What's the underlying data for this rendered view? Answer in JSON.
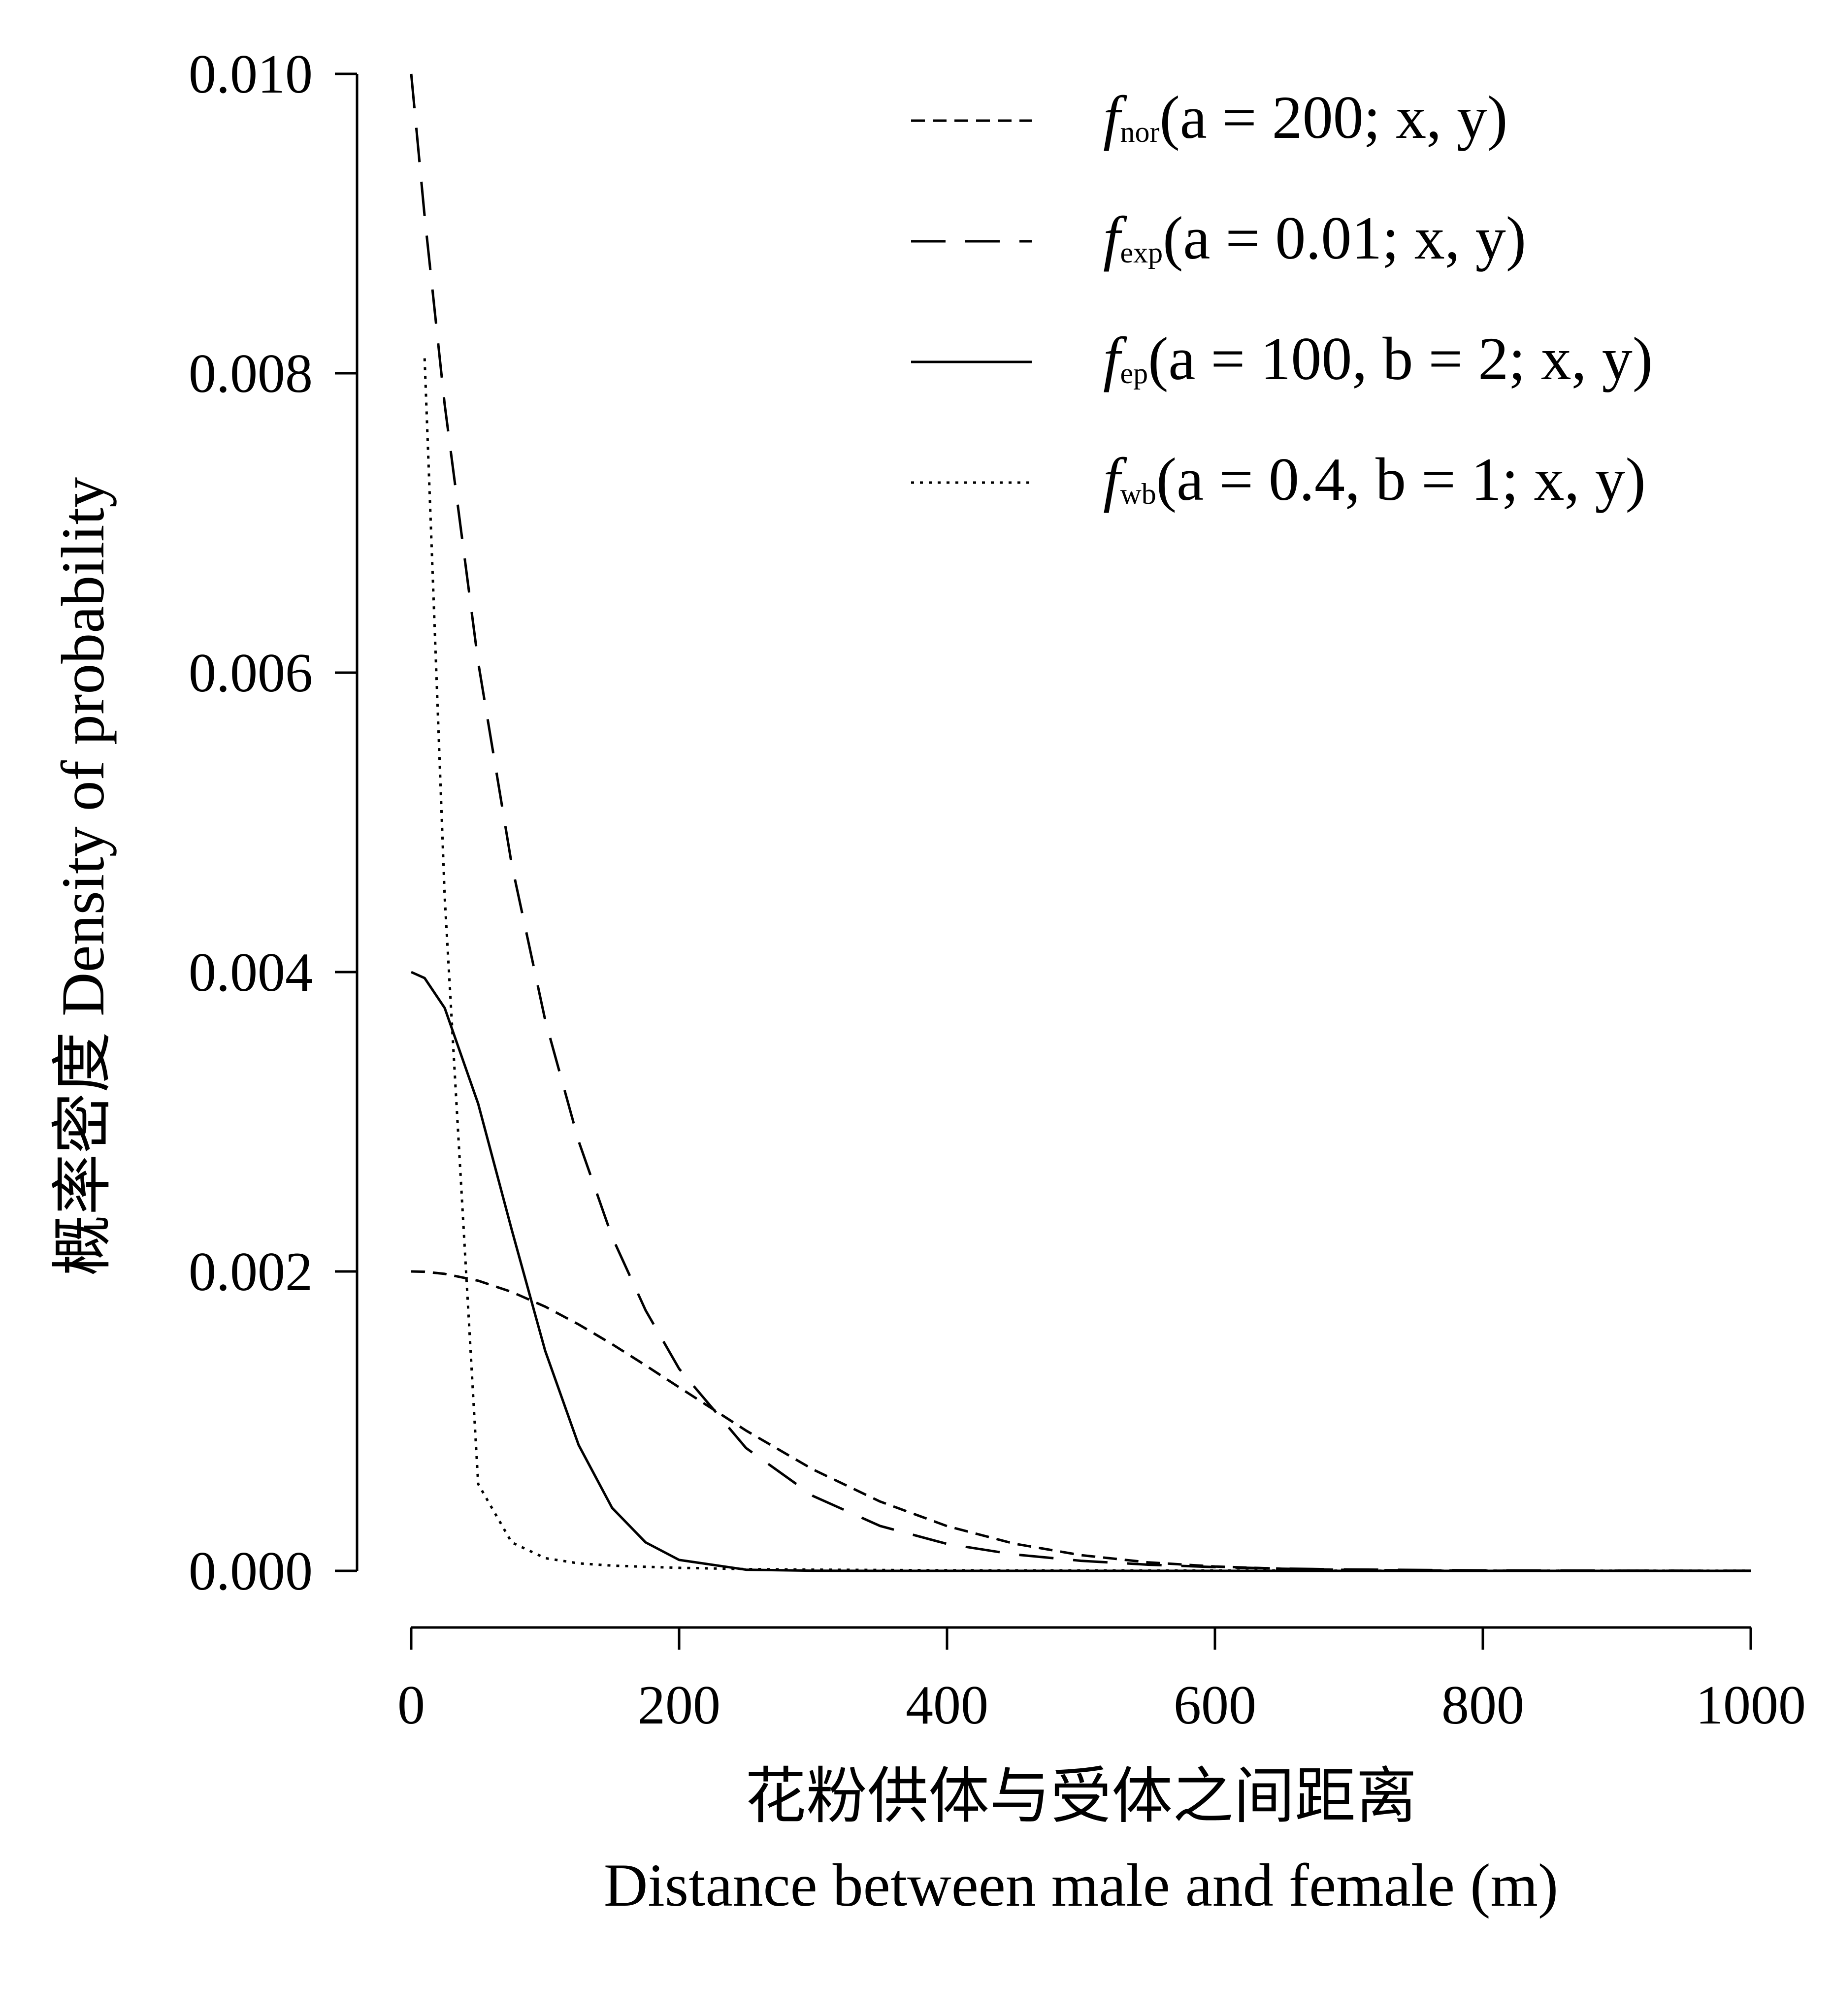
{
  "chart_data": {
    "type": "line",
    "xlabel_cn": "花粉供体与受体之间距离",
    "xlabel": "Distance between male and female (m)",
    "ylabel": "概率密度  Density of probability",
    "xlim": [
      0,
      1000
    ],
    "ylim": [
      0,
      0.01
    ],
    "x_ticks": [
      "0",
      "200",
      "400",
      "600",
      "800",
      "1000"
    ],
    "y_ticks": [
      "0.000",
      "0.002",
      "0.004",
      "0.006",
      "0.008",
      "0.010"
    ],
    "legend_position": "top-right",
    "grid": false,
    "x": [
      0,
      10,
      25,
      50,
      75,
      100,
      125,
      150,
      175,
      200,
      250,
      300,
      350,
      400,
      450,
      500,
      550,
      600,
      650,
      700,
      800,
      900,
      1000
    ],
    "series": [
      {
        "legend_symbol": "f",
        "legend_subscript": "nor",
        "legend_params": "(a = 200; x, y)",
        "style": "short-dash",
        "values": [
          0.002,
          0.001998,
          0.001984,
          0.001938,
          0.001863,
          0.001765,
          0.001646,
          0.001514,
          0.001372,
          0.001226,
          0.000937,
          0.000677,
          0.000463,
          0.000299,
          0.000182,
          0.000105,
          5.7e-05,
          2.9e-05,
          1.4e-05,
          6e-06,
          1e-06,
          2e-07,
          0.0
        ]
      },
      {
        "legend_symbol": "f",
        "legend_subscript": "exp",
        "legend_params": "(a = 0.01; x, y)",
        "style": "long-dash",
        "values": [
          0.01,
          0.00905,
          0.00779,
          0.00607,
          0.00472,
          0.00368,
          0.00287,
          0.00223,
          0.00174,
          0.00135,
          0.00082,
          0.0005,
          0.0003,
          0.00018,
          0.00011,
          6.7e-05,
          4.1e-05,
          2.5e-05,
          1.5e-05,
          9e-06,
          3.4e-06,
          1.2e-06,
          5e-07
        ]
      },
      {
        "legend_symbol": "f",
        "legend_subscript": "ep",
        "legend_params": "(a = 100, b = 2; x, y)",
        "style": "solid",
        "values": [
          0.004,
          0.00396,
          0.00376,
          0.00312,
          0.00228,
          0.00147,
          0.00084,
          0.00042,
          0.00019,
          7.3e-05,
          7.7e-06,
          5e-07,
          0.0,
          0.0,
          0.0,
          0.0,
          0.0,
          0.0,
          0.0,
          0.0,
          0.0,
          0.0,
          0.0
        ]
      },
      {
        "legend_symbol": "f",
        "legend_subscript": "wb",
        "legend_params": "(a = 0.4, b = 1; x, y)",
        "style": "dotted",
        "values": [
          null,
          0.0081,
          0.0045,
          0.00058,
          0.00019,
          8.5e-05,
          5e-05,
          3.5e-05,
          2.7e-05,
          2e-05,
          1.2e-05,
          8e-06,
          6e-06,
          4e-06,
          3e-06,
          3e-06,
          2e-06,
          2e-06,
          2e-06,
          1e-06,
          1e-06,
          1e-06,
          5e-07
        ]
      }
    ]
  }
}
